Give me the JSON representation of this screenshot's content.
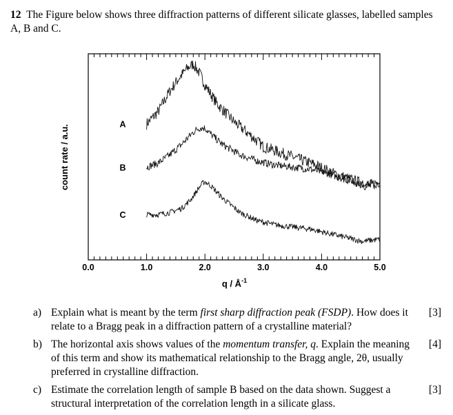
{
  "question": {
    "number": "12",
    "text": "The Figure below shows three diffraction patterns of different silicate glasses, labelled samples A, B and C."
  },
  "chart_data": {
    "type": "line",
    "xlabel": "q / Å",
    "xlabel_sup": "-1",
    "ylabel": "count rate / a.u.",
    "xlim": [
      0.0,
      5.0
    ],
    "x_ticks": [
      "0.0",
      "1.0",
      "2.0",
      "3.0",
      "4.0",
      "5.0"
    ],
    "grid": false,
    "series": [
      {
        "name": "A",
        "x": [
          1.0,
          1.2,
          1.4,
          1.55,
          1.7,
          1.8,
          1.9,
          2.0,
          2.2,
          2.5,
          2.8,
          3.0,
          3.3,
          3.6,
          3.9,
          4.2,
          4.5,
          4.8,
          5.0
        ],
        "y": [
          0.66,
          0.72,
          0.82,
          0.88,
          0.93,
          0.95,
          0.91,
          0.85,
          0.76,
          0.67,
          0.6,
          0.55,
          0.52,
          0.49,
          0.46,
          0.42,
          0.39,
          0.36,
          0.38
        ]
      },
      {
        "name": "B",
        "x": [
          1.0,
          1.2,
          1.4,
          1.6,
          1.8,
          1.9,
          2.0,
          2.1,
          2.3,
          2.6,
          2.9,
          3.2,
          3.5,
          3.8,
          4.1,
          4.4,
          4.7,
          5.0
        ],
        "y": [
          0.45,
          0.47,
          0.51,
          0.56,
          0.62,
          0.64,
          0.64,
          0.61,
          0.56,
          0.51,
          0.48,
          0.46,
          0.45,
          0.44,
          0.42,
          0.39,
          0.37,
          0.36
        ]
      },
      {
        "name": "C",
        "x": [
          1.0,
          1.2,
          1.4,
          1.6,
          1.75,
          1.85,
          1.95,
          2.0,
          2.1,
          2.3,
          2.6,
          2.9,
          3.2,
          3.5,
          3.8,
          4.1,
          4.4,
          4.7,
          5.0
        ],
        "y": [
          0.22,
          0.22,
          0.23,
          0.25,
          0.29,
          0.33,
          0.37,
          0.38,
          0.36,
          0.3,
          0.23,
          0.19,
          0.17,
          0.16,
          0.15,
          0.13,
          0.11,
          0.09,
          0.1
        ]
      }
    ]
  },
  "parts": [
    {
      "label": "a)",
      "pre": "Explain what is meant by the term ",
      "em": "first sharp diffraction peak (FSDP)",
      "post": ". How does it relate to a Bragg peak in a diffraction pattern of a crystalline material?",
      "marks": "[3]"
    },
    {
      "label": "b)",
      "pre": "The horizontal axis shows values of the ",
      "em": "momentum transfer, q",
      "post": ". Explain the meaning of this term and show its mathematical relationship to the Bragg angle, 2θ, usually preferred in crystalline diffraction.",
      "marks": "[4]"
    },
    {
      "label": "c)",
      "pre": "Estimate the correlation length of sample B based on the data shown. Suggest a structural interpretation of the correlation length in a silicate glass.",
      "em": "",
      "post": "",
      "marks": "[3]"
    }
  ]
}
